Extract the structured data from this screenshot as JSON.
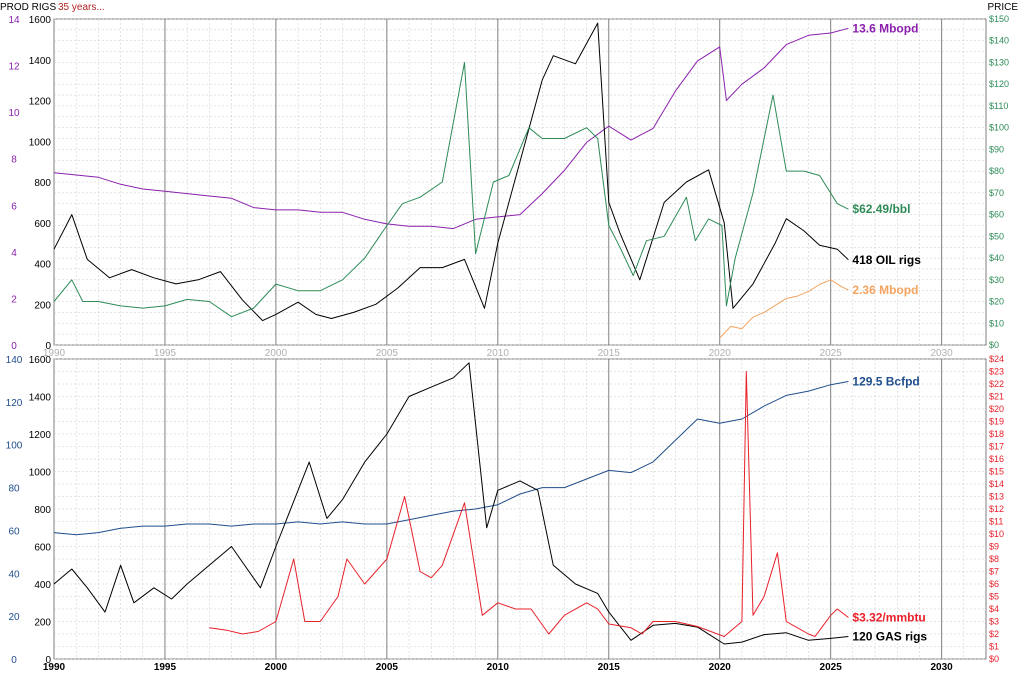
{
  "header": {
    "left_label": "PROD RIGS",
    "subtitle": "35 years...",
    "right_label": "PRICE"
  },
  "chart_data": [
    {
      "id": "oil",
      "type": "line",
      "grid": true,
      "xlim": [
        1990,
        2032
      ],
      "x_ticks": [
        1990,
        1995,
        2000,
        2005,
        2010,
        2015,
        2020,
        2025,
        2030
      ],
      "axes": {
        "prod": {
          "lim": [
            0,
            14
          ],
          "ticks": [
            0,
            2,
            4,
            6,
            8,
            10,
            12,
            14
          ],
          "color": "#8b1fae"
        },
        "rigs": {
          "lim": [
            0,
            1600
          ],
          "ticks": [
            0,
            200,
            400,
            600,
            800,
            1000,
            1200,
            1400,
            1600
          ],
          "color": "#000000"
        },
        "price": {
          "lim": [
            0,
            150
          ],
          "ticks": [
            0,
            10,
            20,
            30,
            40,
            50,
            60,
            70,
            80,
            90,
            100,
            110,
            120,
            130,
            140,
            150
          ],
          "prefix": "$",
          "color": "#2e8b57"
        }
      },
      "series": [
        {
          "key": "us_oil_production",
          "axis": "prod",
          "color": "#8b1fae",
          "end_label": "13.6 Mbopd",
          "x": [
            1990,
            1991,
            1992,
            1993,
            1994,
            1995,
            1996,
            1997,
            1998,
            1999,
            2000,
            2001,
            2002,
            2003,
            2004,
            2005,
            2006,
            2007,
            2008,
            2009,
            2010,
            2011,
            2012,
            2013,
            2014,
            2015,
            2016,
            2017,
            2018,
            2019,
            2020,
            2020.3,
            2021,
            2022,
            2023,
            2024,
            2025,
            2025.8
          ],
          "values": [
            7.4,
            7.3,
            7.2,
            6.9,
            6.7,
            6.6,
            6.5,
            6.4,
            6.3,
            5.9,
            5.8,
            5.8,
            5.7,
            5.7,
            5.4,
            5.2,
            5.1,
            5.1,
            5.0,
            5.4,
            5.5,
            5.6,
            6.5,
            7.5,
            8.7,
            9.4,
            8.8,
            9.3,
            10.9,
            12.2,
            12.8,
            10.5,
            11.2,
            11.9,
            12.9,
            13.3,
            13.4,
            13.6
          ]
        },
        {
          "key": "oil_rigs",
          "axis": "rigs",
          "color": "#000000",
          "end_label": "418 OIL rigs",
          "x": [
            1990,
            1990.8,
            1991.5,
            1992.5,
            1993.5,
            1994.5,
            1995.5,
            1996.5,
            1997.5,
            1998.5,
            1999.4,
            2000,
            2001,
            2001.8,
            2002.5,
            2003.5,
            2004.5,
            2005.5,
            2006.5,
            2007.5,
            2008.5,
            2009.4,
            2010,
            2011,
            2012,
            2012.5,
            2013.5,
            2014.5,
            2015,
            2015.5,
            2016.4,
            2017.5,
            2018.5,
            2019.5,
            2020.2,
            2020.6,
            2021.5,
            2022.5,
            2023,
            2023.8,
            2024.5,
            2025.3,
            2025.8
          ],
          "values": [
            470,
            640,
            420,
            330,
            370,
            330,
            300,
            320,
            360,
            220,
            120,
            150,
            210,
            150,
            130,
            160,
            200,
            280,
            380,
            380,
            420,
            180,
            500,
            900,
            1300,
            1420,
            1380,
            1580,
            700,
            550,
            320,
            700,
            800,
            860,
            600,
            180,
            300,
            500,
            620,
            560,
            490,
            470,
            418
          ]
        },
        {
          "key": "wti_price",
          "axis": "price",
          "color": "#2e8b57",
          "end_label": "$62.49/bbl",
          "x": [
            1990,
            1990.8,
            1991.3,
            1992,
            1993,
            1994,
            1995,
            1996,
            1997,
            1998,
            1999,
            2000,
            2001,
            2002,
            2003,
            2004,
            2005,
            2005.7,
            2006.5,
            2007.5,
            2008.5,
            2009,
            2009.8,
            2010.5,
            2011.4,
            2012,
            2013,
            2014,
            2014.5,
            2015,
            2015.5,
            2016.1,
            2016.7,
            2017.5,
            2018.5,
            2018.9,
            2019.5,
            2020.1,
            2020.3,
            2020.7,
            2021.5,
            2022.4,
            2023,
            2023.8,
            2024.5,
            2025.3,
            2025.8
          ],
          "values": [
            20,
            30,
            20,
            20,
            18,
            17,
            18,
            21,
            20,
            13,
            17,
            28,
            25,
            25,
            30,
            40,
            55,
            65,
            68,
            75,
            130,
            42,
            75,
            78,
            100,
            95,
            95,
            100,
            95,
            55,
            45,
            32,
            48,
            50,
            68,
            48,
            58,
            55,
            18,
            40,
            70,
            115,
            80,
            80,
            78,
            65,
            62.49
          ]
        },
        {
          "key": "other_production",
          "axis": "prod",
          "color": "#f4a460",
          "end_label": "2.36 Mbopd",
          "x": [
            2020,
            2020.5,
            2021,
            2021.5,
            2022,
            2022.5,
            2023,
            2023.5,
            2024,
            2024.5,
            2025,
            2025.5,
            2025.8
          ],
          "values": [
            0.3,
            0.8,
            0.7,
            1.2,
            1.4,
            1.7,
            2.0,
            2.1,
            2.3,
            2.6,
            2.8,
            2.5,
            2.36
          ]
        }
      ]
    },
    {
      "id": "gas",
      "type": "line",
      "grid": true,
      "xlim": [
        1990,
        2032
      ],
      "x_ticks": [
        1990,
        1995,
        2000,
        2005,
        2010,
        2015,
        2020,
        2025,
        2030
      ],
      "axes": {
        "prod": {
          "lim": [
            0,
            140
          ],
          "ticks": [
            0,
            20,
            40,
            60,
            80,
            100,
            120,
            140
          ],
          "color": "#1f4e8c"
        },
        "rigs": {
          "lim": [
            0,
            1600
          ],
          "ticks": [
            0,
            200,
            400,
            600,
            800,
            1000,
            1200,
            1400,
            1600
          ],
          "color": "#000000"
        },
        "price": {
          "lim": [
            0,
            24
          ],
          "ticks": [
            0,
            1,
            2,
            3,
            4,
            5,
            6,
            7,
            8,
            9,
            10,
            11,
            12,
            13,
            14,
            15,
            16,
            17,
            18,
            19,
            20,
            21,
            22,
            23,
            24
          ],
          "prefix": "$",
          "color": "#e8202a"
        }
      },
      "series": [
        {
          "key": "us_gas_production",
          "axis": "prod",
          "color": "#1f4e8c",
          "end_label": "129.5 Bcfpd",
          "x": [
            1990,
            1991,
            1992,
            1993,
            1994,
            1995,
            1996,
            1997,
            1998,
            1999,
            2000,
            2001,
            2002,
            2003,
            2004,
            2005,
            2006,
            2007,
            2008,
            2009,
            2010,
            2011,
            2012,
            2013,
            2014,
            2015,
            2016,
            2017,
            2018,
            2019,
            2020,
            2021,
            2022,
            2023,
            2024,
            2025,
            2025.8
          ],
          "values": [
            59,
            58,
            59,
            61,
            62,
            62,
            63,
            63,
            62,
            63,
            63,
            64,
            63,
            64,
            63,
            63,
            65,
            67,
            69,
            70,
            72,
            77,
            80,
            80,
            84,
            88,
            87,
            92,
            102,
            112,
            110,
            112,
            118,
            123,
            125,
            128,
            129.5
          ]
        },
        {
          "key": "gas_rigs",
          "axis": "rigs",
          "color": "#000000",
          "end_label": "120 GAS rigs",
          "x": [
            1990,
            1990.8,
            1991.5,
            1992.3,
            1993,
            1993.6,
            1994.5,
            1995.3,
            1996,
            1997,
            1998,
            1999.3,
            2000,
            2001.5,
            2002.3,
            2003,
            2004,
            2005,
            2006,
            2007,
            2008,
            2008.7,
            2009.5,
            2010,
            2011,
            2011.8,
            2012.5,
            2013.5,
            2014.5,
            2015,
            2016,
            2017,
            2018,
            2019,
            2020.2,
            2021,
            2022,
            2023,
            2024,
            2025,
            2025.8
          ],
          "values": [
            400,
            480,
            380,
            250,
            500,
            300,
            380,
            320,
            400,
            500,
            600,
            380,
            600,
            1050,
            750,
            850,
            1050,
            1200,
            1400,
            1450,
            1500,
            1580,
            700,
            900,
            950,
            900,
            500,
            400,
            350,
            250,
            100,
            180,
            190,
            170,
            80,
            90,
            130,
            140,
            100,
            110,
            120
          ]
        },
        {
          "key": "henry_hub_price",
          "axis": "price",
          "color": "#e8202a",
          "end_label": "$3.32/mmbtu",
          "x": [
            1997,
            1997.8,
            1998.5,
            1999.2,
            2000,
            2000.8,
            2001.3,
            2002,
            2002.8,
            2003.2,
            2004,
            2005,
            2005.8,
            2006.5,
            2007,
            2007.5,
            2008.5,
            2009.3,
            2010,
            2010.8,
            2011.5,
            2012.3,
            2013,
            2014,
            2014.5,
            2015,
            2016,
            2016.5,
            2017,
            2018,
            2019,
            2020.2,
            2021,
            2021.2,
            2021.5,
            2022,
            2022.6,
            2023,
            2023.5,
            2024,
            2024.3,
            2025,
            2025.3,
            2025.8
          ],
          "values": [
            2.5,
            2.3,
            2.0,
            2.2,
            3.0,
            8.0,
            3.0,
            3.0,
            5.0,
            8.0,
            6.0,
            8.0,
            13.0,
            7.0,
            6.5,
            7.5,
            12.5,
            3.5,
            4.5,
            4.0,
            4.0,
            2.0,
            3.5,
            4.5,
            4.0,
            2.8,
            2.5,
            2.0,
            3.0,
            3.0,
            2.6,
            1.8,
            3.0,
            23.0,
            3.5,
            5.0,
            8.5,
            3.0,
            2.5,
            2.0,
            1.8,
            3.5,
            4.0,
            3.32
          ]
        }
      ]
    }
  ]
}
